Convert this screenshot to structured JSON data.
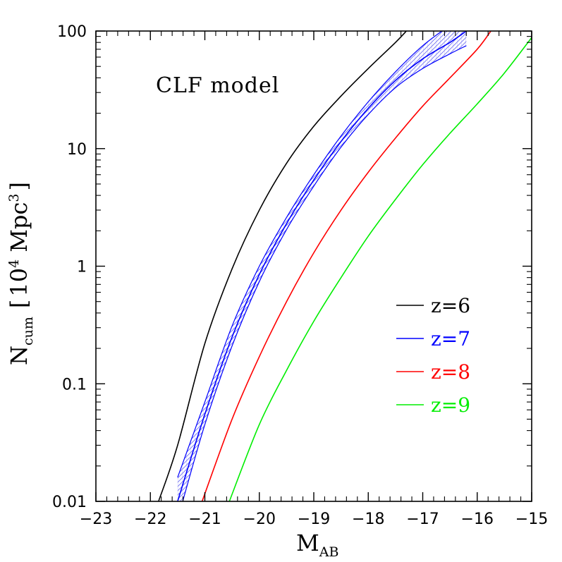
{
  "chart_data": {
    "type": "line",
    "annotation": "CLF model",
    "xlabel": {
      "main": "M",
      "sub": "AB"
    },
    "ylabel": {
      "main": "N",
      "sub": "cum",
      "bracket_open": "[",
      "unit_number": "10",
      "unit_number_sup": "4",
      "unit_rest": "Mpc",
      "unit_rest_sup": "3",
      "bracket_close": "]"
    },
    "xlim": [
      -23,
      -15
    ],
    "ylim": [
      0.01,
      100
    ],
    "yscale": "log",
    "x_ticks": [
      -23,
      -22,
      -21,
      -20,
      -19,
      -18,
      -17,
      -16,
      -15
    ],
    "x_tick_labels": [
      "−23",
      "−22",
      "−21",
      "−20",
      "−19",
      "−18",
      "−17",
      "−16",
      "−15"
    ],
    "y_ticks": [
      0.01,
      0.1,
      1,
      10,
      100
    ],
    "y_tick_labels": [
      "0.01",
      "0.1",
      "1",
      "10",
      "100"
    ],
    "legend_position": "right",
    "series": [
      {
        "name": "z=6",
        "color": "#000000",
        "x": [
          -21.85,
          -21.5,
          -21.0,
          -20.5,
          -20.0,
          -19.5,
          -19.0,
          -18.5,
          -18.0,
          -17.5,
          -17.3
        ],
        "y": [
          0.01,
          0.03,
          0.22,
          0.95,
          3.0,
          7.5,
          15.5,
          28,
          48,
          80,
          100
        ]
      },
      {
        "name": "z=7",
        "color": "#0000ff",
        "band": true,
        "x": [
          -21.5,
          -21.0,
          -20.5,
          -20.0,
          -19.5,
          -19.0,
          -18.5,
          -18.0,
          -17.5,
          -17.0,
          -16.5,
          -16.2
        ],
        "y": [
          0.01,
          0.055,
          0.25,
          0.85,
          2.3,
          5.4,
          11.5,
          22,
          38,
          58,
          80,
          100
        ],
        "y_low": [
          0.007,
          0.045,
          0.21,
          0.74,
          2.05,
          4.8,
          10.3,
          19.5,
          33,
          48,
          64,
          75
        ],
        "y_high": [
          0.016,
          0.07,
          0.31,
          1.0,
          2.6,
          6.0,
          12.8,
          25,
          45,
          75,
          112,
          140
        ]
      },
      {
        "name": "z=8",
        "color": "#ff0000",
        "x": [
          -21.05,
          -20.5,
          -20.0,
          -19.5,
          -19.0,
          -18.5,
          -18.0,
          -17.5,
          -17.0,
          -16.5,
          -16.0,
          -15.75
        ],
        "y": [
          0.01,
          0.05,
          0.17,
          0.5,
          1.3,
          3.0,
          6.3,
          12.3,
          23,
          40,
          70,
          100
        ]
      },
      {
        "name": "z=9",
        "color": "#00ee00",
        "x": [
          -20.55,
          -20.0,
          -19.5,
          -19.0,
          -18.5,
          -18.0,
          -17.5,
          -17.0,
          -16.5,
          -16.0,
          -15.5,
          -15.0
        ],
        "y": [
          0.01,
          0.045,
          0.13,
          0.34,
          0.8,
          1.8,
          3.7,
          7.3,
          13.5,
          24,
          44,
          88
        ]
      }
    ]
  }
}
